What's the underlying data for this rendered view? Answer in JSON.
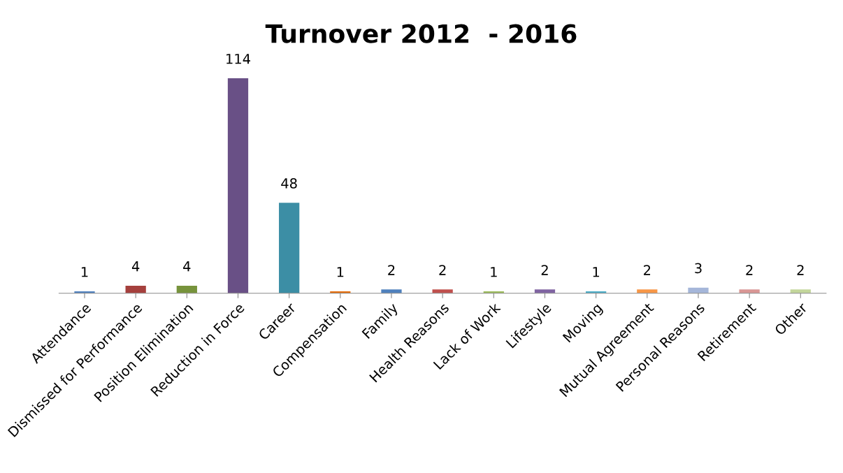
{
  "chart_data": {
    "type": "bar",
    "title": "Turnover 2012  - 2016",
    "categories": [
      "Attendance",
      "Dismissed for Performance",
      "Position Elimination",
      "Reduction in Force",
      "Career",
      "Compensation",
      "Family",
      "Health Reasons",
      "Lack of Work",
      "Lifestyle",
      "Moving",
      "Mutual Agreement",
      "Personal Reasons",
      "Retirement",
      "Other"
    ],
    "values": [
      1,
      4,
      4,
      114,
      48,
      1,
      2,
      2,
      1,
      2,
      1,
      2,
      3,
      2,
      2
    ],
    "colors": [
      "#4f81bd",
      "#a5403d",
      "#77933c",
      "#695086",
      "#3c8ea5",
      "#e46c0a",
      "#4f81bd",
      "#c0504d",
      "#9bbb59",
      "#8064a2",
      "#4bacc6",
      "#f79646",
      "#a5b6d9",
      "#d99694",
      "#c3d69b"
    ],
    "data_labels": true,
    "grid": false,
    "legend": false,
    "tick_labels": "x"
  }
}
